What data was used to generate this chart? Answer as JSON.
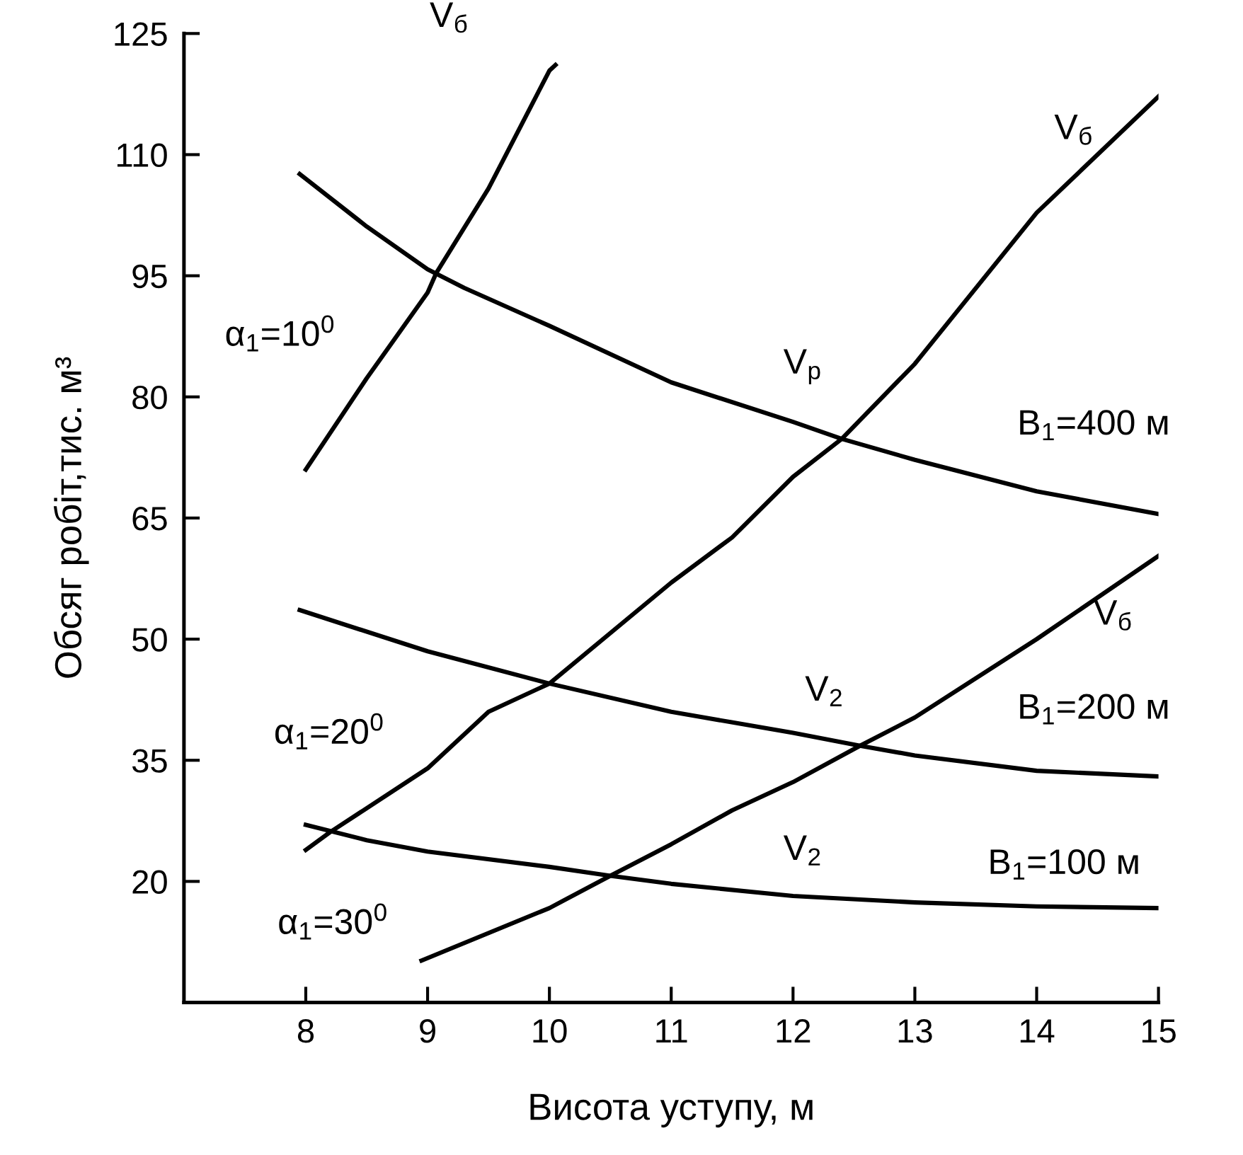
{
  "chart_data": {
    "type": "line",
    "xlabel": "Висота уступу, м",
    "ylabel": "Обсяг робіт,тис. м³",
    "xlim": [
      7,
      15
    ],
    "xticks": [
      8,
      9,
      10,
      11,
      12,
      13,
      14,
      15
    ],
    "ylim": [
      5,
      125
    ],
    "yticks": [
      20,
      35,
      50,
      65,
      80,
      95,
      110,
      125
    ],
    "grid": false,
    "legend": false,
    "marker": "none",
    "line_style": "solid",
    "series": [
      {
        "color": "#000000",
        "x": [
          8,
          8.5,
          9,
          9.07,
          9.5,
          10,
          10.05
        ],
        "values": [
          71.0,
          82.3,
          92.9,
          95.3,
          105.8,
          120.4,
          121.1
        ]
      },
      {
        "color": "#000000",
        "x": [
          7.95,
          8.5,
          9,
          9.3,
          10,
          11,
          12,
          12.4,
          13,
          14,
          15
        ],
        "values": [
          107.6,
          101.1,
          95.8,
          93.5,
          88.8,
          81.8,
          76.9,
          74.8,
          72.2,
          68.3,
          65.5
        ]
      },
      {
        "color": "#000000",
        "x": [
          8,
          8.2,
          9,
          9.5,
          10,
          11,
          11.5,
          12,
          12.4,
          13,
          14,
          15
        ],
        "values": [
          23.9,
          26.1,
          34.0,
          41.0,
          44.5,
          57.0,
          62.6,
          70.1,
          74.8,
          84.1,
          102.8,
          117.2
        ]
      },
      {
        "color": "#000000",
        "x": [
          7.95,
          9,
          10,
          11,
          12,
          12.55,
          13,
          14,
          15
        ],
        "values": [
          53.6,
          48.5,
          44.5,
          41.0,
          38.4,
          36.8,
          35.6,
          33.7,
          33.0
        ]
      },
      {
        "color": "#000000",
        "x": [
          8.95,
          10,
          10.5,
          11,
          11.5,
          12,
          12.55,
          13,
          14,
          15
        ],
        "values": [
          10.2,
          16.7,
          20.7,
          24.6,
          28.8,
          32.3,
          36.8,
          40.3,
          50.0,
          60.3
        ]
      },
      {
        "color": "#000000",
        "x": [
          8,
          8.5,
          9,
          10,
          10.5,
          11,
          12,
          13,
          14,
          15
        ],
        "values": [
          27.0,
          25.1,
          23.7,
          21.8,
          20.7,
          19.7,
          18.2,
          17.4,
          16.9,
          16.7
        ]
      }
    ],
    "annotations": [
      {
        "text": "V$_{б}$",
        "x": 10.05,
        "y": 121.1
      },
      {
        "text": "α$_{1}$=10$^{0}$",
        "x": 8.5,
        "y": 82.3
      },
      {
        "text": "V$_{p}$",
        "x": 12,
        "y": 76.9
      },
      {
        "text": "V$_{б}$",
        "x": 15,
        "y": 117.2
      },
      {
        "text": "B$_{1}$=400 м",
        "x": 15,
        "y": 65.5
      },
      {
        "text": "V$_{б}$",
        "x": 14,
        "y": 50.0
      },
      {
        "text": "V$_{2}$",
        "x": 12,
        "y": 38.4
      },
      {
        "text": "B$_{1}$=200 м",
        "x": 15,
        "y": 33.0
      },
      {
        "text": "α$_{1}$=20$^{0}$",
        "x": 9,
        "y": 34.0
      },
      {
        "text": "V$_{2}$",
        "x": 12,
        "y": 18.2
      },
      {
        "text": "B$_{1}$=100 м",
        "x": 15,
        "y": 16.7
      },
      {
        "text": "α$_{1}$=30$^{0}$",
        "x": 8.95,
        "y": 10.2
      }
    ]
  }
}
